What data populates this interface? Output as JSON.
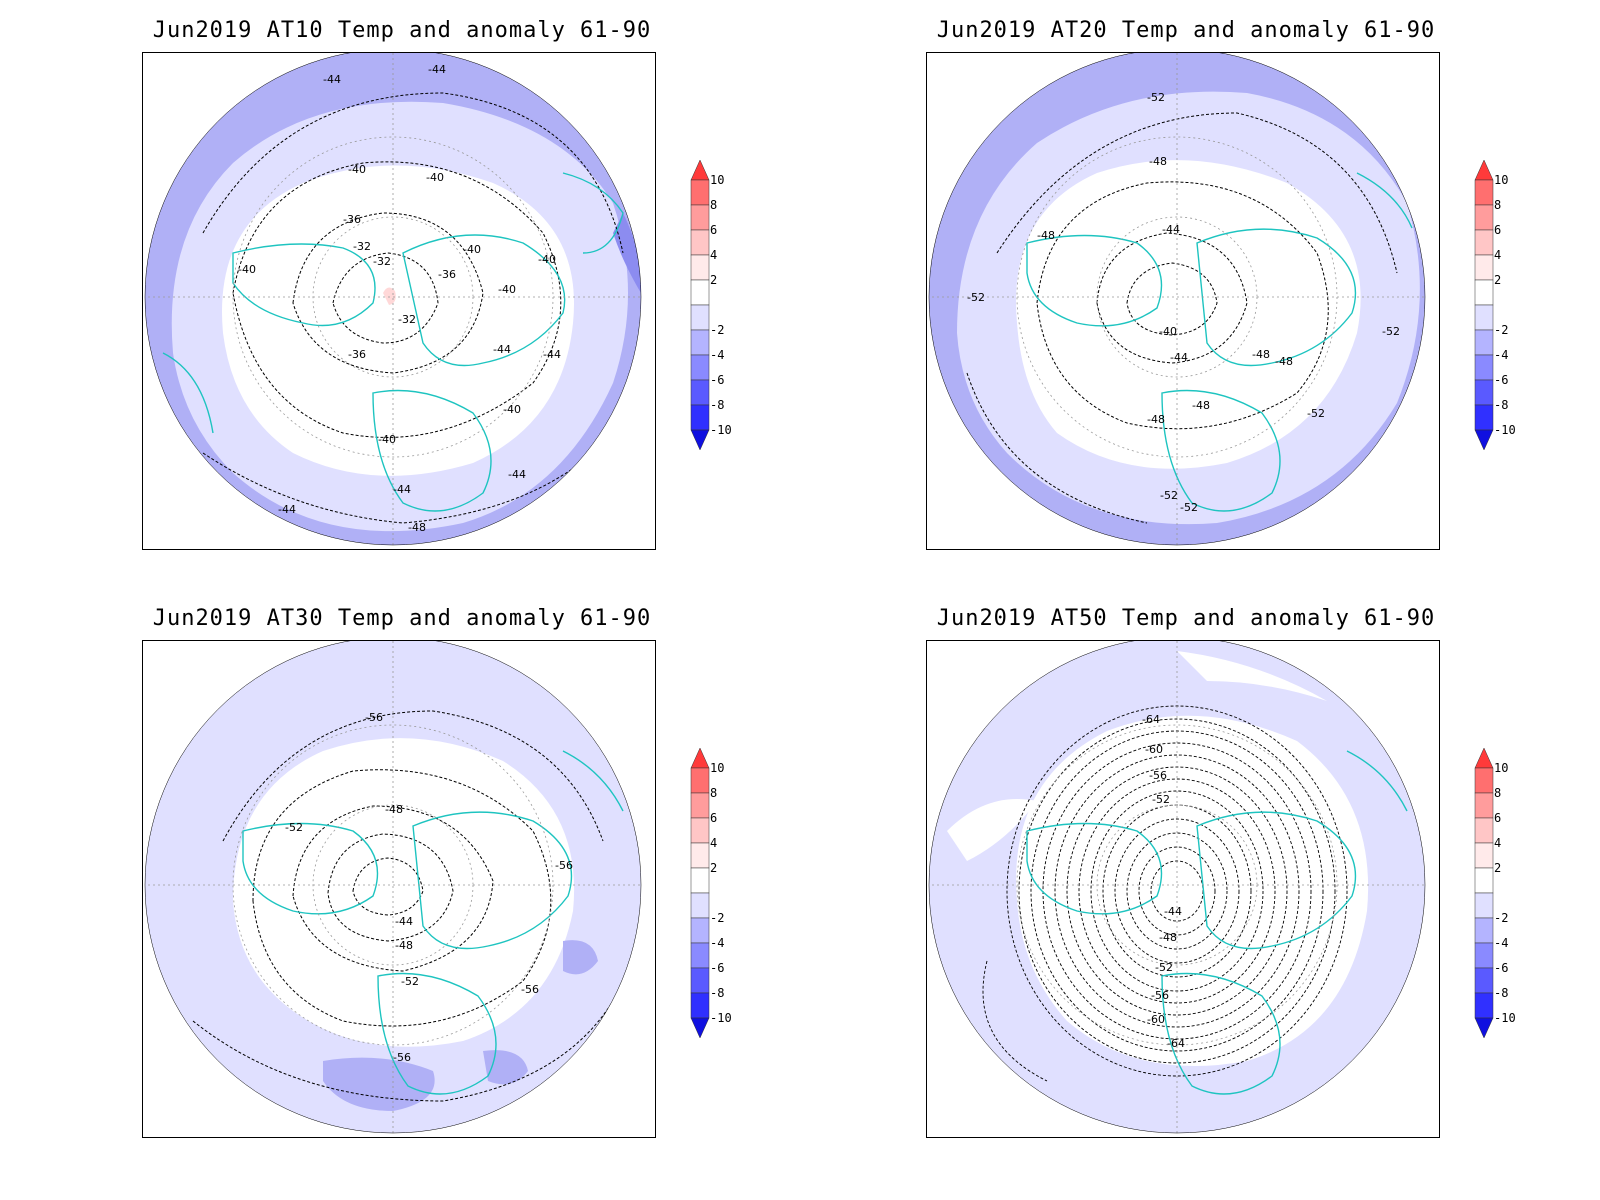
{
  "panels": [
    {
      "title": "Jun2019 AT10 Temp and anomaly 61-90",
      "contour_labels": [
        "-44",
        "-44",
        "-40",
        "-40",
        "-36",
        "-32",
        "-32",
        "-32",
        "-36",
        "-40",
        "-40",
        "-40",
        "-40",
        "-44",
        "-36",
        "-44",
        "-40",
        "-40",
        "-44",
        "-44",
        "-44",
        "-48"
      ]
    },
    {
      "title": "Jun2019 AT20 Temp and anomaly 61-90",
      "contour_labels": [
        "-52",
        "-48",
        "-48",
        "-44",
        "-52",
        "-40",
        "-44",
        "-48",
        "-48",
        "-52",
        "-48",
        "-48",
        "-52",
        "-52",
        "-52"
      ]
    },
    {
      "title": "Jun2019 AT30 Temp and anomaly 61-90",
      "contour_labels": [
        "-56",
        "-52",
        "-48",
        "-44",
        "-48",
        "-52",
        "-56",
        "-56",
        "-56"
      ]
    },
    {
      "title": "Jun2019 AT50 Temp and anomaly 61-90",
      "contour_labels": [
        "-64",
        "-60",
        "-56",
        "-52",
        "-44",
        "-48",
        "-52",
        "-56",
        "-60",
        "-64"
      ]
    }
  ],
  "colorbar": {
    "labels": [
      "10",
      "8",
      "6",
      "4",
      "2",
      "-2",
      "-4",
      "-6",
      "-8",
      "-10"
    ],
    "colors": [
      "#ff3a3a",
      "#ff6f6f",
      "#ff9c9c",
      "#ffc6c6",
      "#ffeaea",
      "#ffffff",
      "#e0e0ff",
      "#b4b4ff",
      "#8a8aff",
      "#5a5aff",
      "#3030ff",
      "#1010e0"
    ]
  },
  "fill_colors": {
    "white": "#ffffff",
    "light": "#e0e0ff",
    "medium": "#b0b0f6",
    "dark": "#8c8cf0",
    "pink": "#ffd8d8"
  },
  "coast_color": "#1ec4c0"
}
